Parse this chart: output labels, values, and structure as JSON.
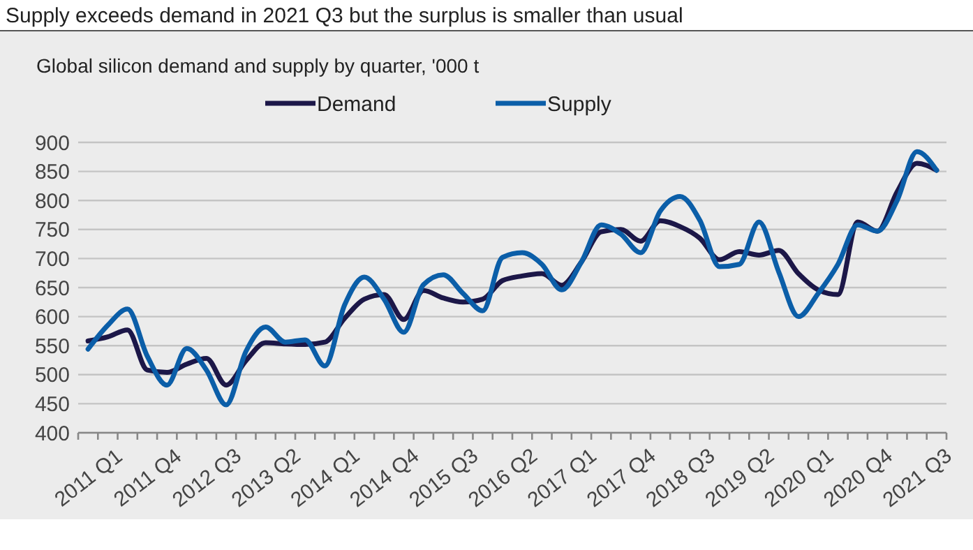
{
  "chart_data": {
    "type": "line",
    "title": "Supply exceeds demand in 2021 Q3 but the surplus is smaller than usual",
    "subtitle": "Global silicon demand and supply by quarter, '000 t",
    "categories": [
      "2011 Q1",
      null,
      null,
      "2011 Q4",
      null,
      null,
      "2012 Q3",
      null,
      null,
      "2013 Q2",
      null,
      null,
      "2014 Q1",
      null,
      null,
      "2014 Q4",
      null,
      null,
      "2015 Q3",
      null,
      null,
      "2016 Q2",
      null,
      null,
      "2017 Q1",
      null,
      null,
      "2017 Q4",
      null,
      null,
      "2018 Q3",
      null,
      null,
      "2019 Q2",
      null,
      null,
      "2020 Q1",
      null,
      null,
      "2020 Q4",
      null,
      null,
      "2021 Q3",
      null
    ],
    "series": [
      {
        "name": "Demand",
        "color": "#1c1748",
        "values": [
          558,
          565,
          577,
          508,
          504,
          518,
          528,
          482,
          524,
          555,
          553,
          552,
          556,
          597,
          630,
          638,
          595,
          645,
          632,
          625,
          630,
          662,
          670,
          674,
          654,
          694,
          746,
          750,
          730,
          765,
          755,
          735,
          698,
          712,
          706,
          714,
          674,
          646,
          638,
          763,
          747,
          815,
          864,
          852
        ]
      },
      {
        "name": "Supply",
        "color": "#0b5ea8",
        "values": [
          544,
          585,
          613,
          532,
          482,
          545,
          508,
          448,
          540,
          582,
          556,
          560,
          515,
          620,
          668,
          630,
          573,
          655,
          672,
          640,
          610,
          702,
          710,
          690,
          646,
          694,
          758,
          742,
          710,
          782,
          807,
          766,
          686,
          690,
          763,
          677,
          600,
          640,
          690,
          758,
          747,
          800,
          884,
          852
        ]
      }
    ],
    "ylim": [
      400,
      900
    ],
    "yticks": [
      400,
      450,
      500,
      550,
      600,
      650,
      700,
      750,
      800,
      850,
      900
    ],
    "grid": "y",
    "legend": "top",
    "marker": "none",
    "line_style": "solid"
  }
}
